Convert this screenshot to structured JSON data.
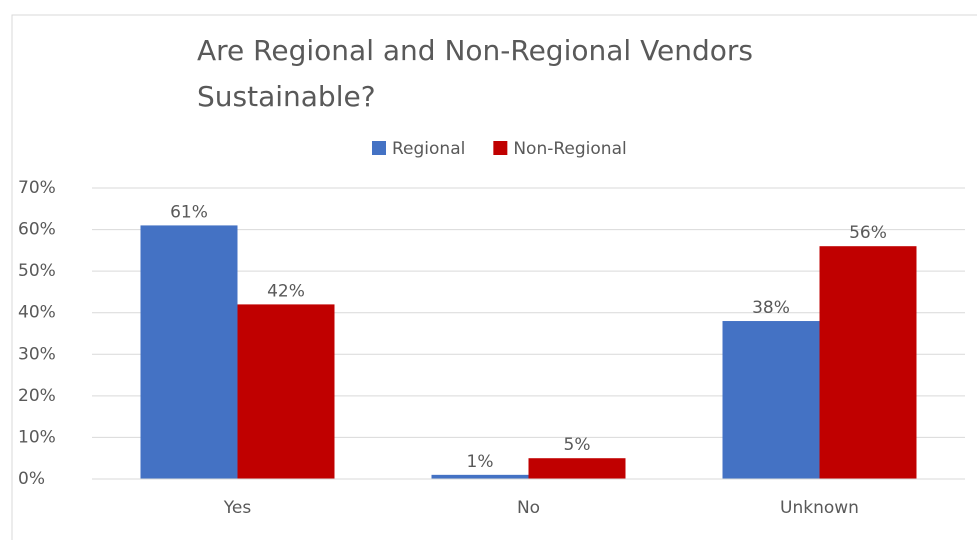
{
  "chart_data": {
    "type": "bar",
    "title": "Are Regional and Non-Regional Vendors Sustainable?",
    "categories": [
      "Yes",
      "No",
      "Unknown"
    ],
    "series": [
      {
        "name": "Regional",
        "color": "#4472c4",
        "values": [
          61,
          1,
          38
        ],
        "value_labels": [
          "61%",
          "1%",
          "38%"
        ]
      },
      {
        "name": "Non-Regional",
        "color": "#c00000",
        "values": [
          42,
          5,
          56
        ],
        "value_labels": [
          "42%",
          "5%",
          "56%"
        ]
      }
    ],
    "ylim": [
      0,
      70
    ],
    "yticks": [
      {
        "value": 0,
        "label": "0%"
      },
      {
        "value": 10,
        "label": "10%"
      },
      {
        "value": 20,
        "label": "20%"
      },
      {
        "value": 30,
        "label": "30%"
      },
      {
        "value": 40,
        "label": "40%"
      },
      {
        "value": 50,
        "label": "50%"
      },
      {
        "value": 60,
        "label": "60%"
      },
      {
        "value": 70,
        "label": "70%"
      }
    ],
    "grid": true,
    "legend": "top"
  }
}
